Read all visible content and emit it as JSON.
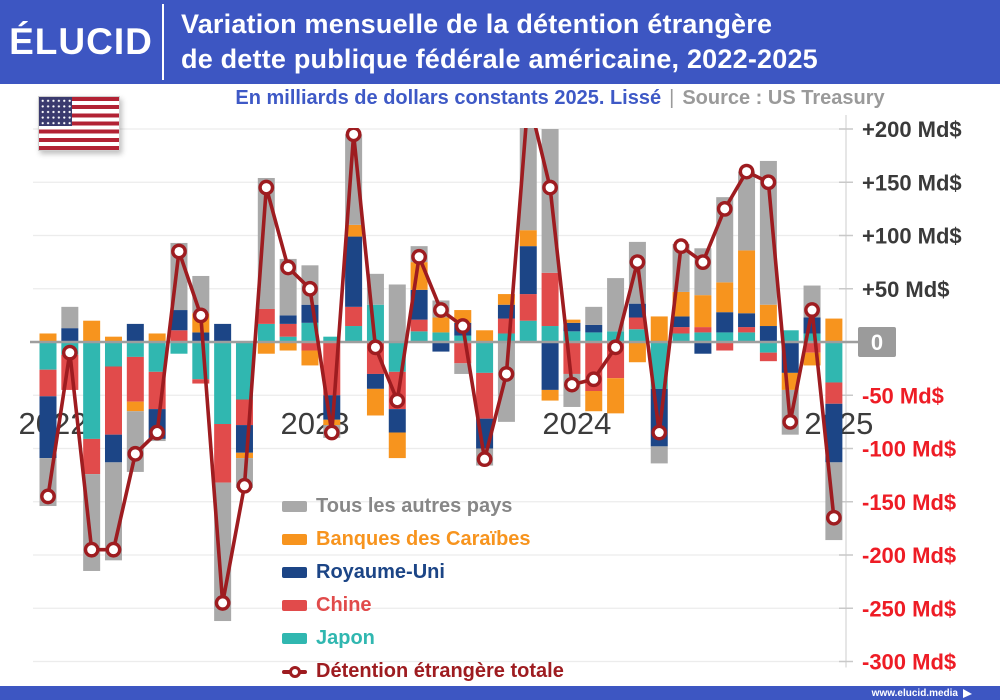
{
  "header": {
    "logo": "ÉLUCID",
    "title_line1": "Variation mensuelle de la détention étrangère",
    "title_line2": "de dette publique fédérale américaine, 2022-2025"
  },
  "subtitle": {
    "primary": "En milliards de dollars constants 2025. Lissé",
    "separator": "|",
    "source": "Source : US Treasury"
  },
  "flag": {
    "name": "drapeau-etats-unis"
  },
  "colors": {
    "header_bg": "#3d56c2",
    "subtitle_primary": "#3e59c6",
    "subtitle_source": "#9a9a9a",
    "axis_positive": "#3a3a3a",
    "axis_negative": "#ee1c25",
    "zero_badge_bg": "#9b9b9b",
    "zero_badge_text": "#ffffff",
    "gridline": "#ececec",
    "spine": "#d9d9d9",
    "tick": "#c9c9c9",
    "zero_line": "#9e9e9e",
    "year_label": "#3c3c3c",
    "footer_bg": "#3d56c2"
  },
  "legend": {
    "items": [
      {
        "label": "Tous les autres pays",
        "color": "#a9a9a9",
        "text_color": "#878787"
      },
      {
        "label": "Banques des Caraïbes",
        "color": "#f7941e",
        "text_color": "#f7941e"
      },
      {
        "label": "Royaume-Uni",
        "color": "#1c4586",
        "text_color": "#1c4586"
      },
      {
        "label": "Chine",
        "color": "#e14b4b",
        "text_color": "#e14b4b"
      },
      {
        "label": "Japon",
        "color": "#30b7b0",
        "text_color": "#30b7b0"
      },
      {
        "label": "Détention étrangère totale",
        "color": "#9e1c20",
        "text_color": "#9e1c20"
      }
    ]
  },
  "chart_data": {
    "type": "bar",
    "subtype": "stacked-bars-with-line-overlay",
    "title": "Variation mensuelle de la détention étrangère de dette publique fédérale américaine, 2022-2025",
    "unit": "Md$ (milliards de dollars constants 2025)",
    "x": [
      "2022-01",
      "2022-02",
      "2022-03",
      "2022-04",
      "2022-05",
      "2022-06",
      "2022-07",
      "2022-08",
      "2022-09",
      "2022-10",
      "2022-11",
      "2022-12",
      "2023-01",
      "2023-02",
      "2023-03",
      "2023-04",
      "2023-05",
      "2023-06",
      "2023-07",
      "2023-08",
      "2023-09",
      "2023-10",
      "2023-11",
      "2023-12",
      "2024-01",
      "2024-02",
      "2024-03",
      "2024-04",
      "2024-05",
      "2024-06",
      "2024-07",
      "2024-08",
      "2024-09",
      "2024-10",
      "2024-11",
      "2024-12",
      "2025-01"
    ],
    "series": [
      {
        "name": "Japon",
        "color": "#30b7b0",
        "values": [
          -26,
          -12,
          -91,
          -23,
          -14,
          -28,
          -11,
          -35,
          -77,
          -54,
          17,
          5,
          18,
          5,
          15,
          35,
          -28,
          10,
          9,
          6,
          -29,
          8,
          20,
          15,
          10,
          9,
          10,
          12,
          -44,
          8,
          9,
          9,
          9,
          -10,
          11,
          8,
          -38
        ]
      },
      {
        "name": "Chine",
        "color": "#e14b4b",
        "values": [
          -25,
          -33,
          -33,
          -64,
          -42,
          -35,
          11,
          -4,
          -55,
          -24,
          14,
          12,
          -8,
          -50,
          18,
          -30,
          -35,
          11,
          0,
          -20,
          -43,
          14,
          25,
          50,
          -30,
          -46,
          -34,
          11,
          0,
          6,
          5,
          -8,
          5,
          -8,
          0,
          -10,
          -20
        ]
      },
      {
        "name": "Royaume-Uni",
        "color": "#1c4586",
        "values": [
          -58,
          13,
          0,
          -26,
          17,
          -28,
          19,
          9,
          17,
          -26,
          0,
          8,
          17,
          -23,
          66,
          -14,
          -22,
          28,
          -9,
          12,
          -28,
          13,
          45,
          -45,
          8,
          7,
          0,
          13,
          -54,
          10,
          -11,
          19,
          13,
          15,
          -29,
          15,
          -55
        ]
      },
      {
        "name": "Banques des Caraïbes",
        "color": "#f7941e",
        "values": [
          8,
          0,
          20,
          5,
          -9,
          8,
          0,
          18,
          0,
          -5,
          -11,
          -8,
          -14,
          -5,
          11,
          -25,
          -24,
          26,
          14,
          12,
          11,
          10,
          15,
          -10,
          3,
          -19,
          -33,
          -19,
          24,
          23,
          30,
          28,
          59,
          20,
          -16,
          -12,
          22
        ]
      },
      {
        "name": "Tous les autres pays",
        "color": "#a9a9a9",
        "values": [
          -45,
          20,
          -91,
          -92,
          -57,
          -2,
          63,
          35,
          -130,
          -28,
          123,
          53,
          37,
          -12,
          85,
          29,
          54,
          15,
          16,
          -10,
          -16,
          -75,
          125,
          135,
          -31,
          17,
          50,
          58,
          -16,
          45,
          44,
          80,
          74,
          135,
          -42,
          30,
          -73
        ]
      }
    ],
    "line": {
      "name": "Détention étrangère totale",
      "color": "#9e1c20",
      "values": [
        -145,
        -10,
        -195,
        -195,
        -105,
        -85,
        85,
        25,
        -245,
        -135,
        145,
        70,
        50,
        -85,
        195,
        -5,
        -55,
        80,
        30,
        15,
        -110,
        -30,
        230,
        145,
        -40,
        -35,
        -5,
        75,
        -85,
        90,
        75,
        125,
        160,
        150,
        -75,
        30,
        -165
      ]
    },
    "ylim": [
      -300,
      230
    ],
    "grid": true,
    "legend_position": "bottom-left-inside",
    "yticks": [
      {
        "v": 200,
        "label": "+200 Md$"
      },
      {
        "v": 150,
        "label": "+150 Md$"
      },
      {
        "v": 100,
        "label": "+100 Md$"
      },
      {
        "v": 50,
        "label": "+50 Md$"
      },
      {
        "v": 0,
        "label": "0"
      },
      {
        "v": -50,
        "label": "-50 Md$"
      },
      {
        "v": -100,
        "label": "-100 Md$"
      },
      {
        "v": -150,
        "label": "-150 Md$"
      },
      {
        "v": -200,
        "label": "-200 Md$"
      },
      {
        "v": -250,
        "label": "-250 Md$"
      },
      {
        "v": -300,
        "label": "-300 Md$"
      }
    ],
    "year_ticks": [
      {
        "label": "2022",
        "month_index": 0
      },
      {
        "label": "2023",
        "month_index": 12
      },
      {
        "label": "2024",
        "month_index": 24
      },
      {
        "label": "2025",
        "month_index": 36
      }
    ]
  },
  "footer": {
    "url": "www.elucid.media"
  }
}
